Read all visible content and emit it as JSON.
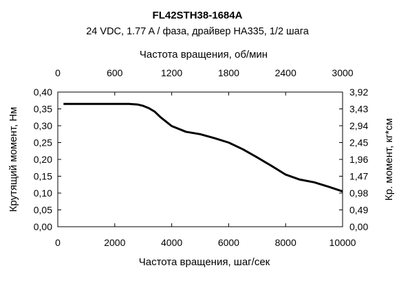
{
  "chart_data": {
    "type": "line",
    "title": "FL42STH38-1684A",
    "subtitle": "24 VDC, 1.77 A / фаза, драйвер HA335, 1/2 шага",
    "xlabel_bottom": "Частота вращения, шаг/сек",
    "xlabel_top": "Частота вращения, об/мин",
    "ylabel_left": "Крутящий момент, Нм",
    "ylabel_right": "Кр. момент, кг*см",
    "xlim": [
      0,
      10000
    ],
    "ylim": [
      0,
      0.4
    ],
    "grid": false,
    "legend": false,
    "x_ticks_bottom": [
      {
        "v": 0,
        "label": "0"
      },
      {
        "v": 2000,
        "label": "2000"
      },
      {
        "v": 4000,
        "label": "4000"
      },
      {
        "v": 6000,
        "label": "6000"
      },
      {
        "v": 8000,
        "label": "8000"
      },
      {
        "v": 10000,
        "label": "10000"
      }
    ],
    "x_ticks_top": [
      {
        "v": 0,
        "label": "0"
      },
      {
        "v": 2000,
        "label": "600"
      },
      {
        "v": 4000,
        "label": "1200"
      },
      {
        "v": 6000,
        "label": "1800"
      },
      {
        "v": 8000,
        "label": "2400"
      },
      {
        "v": 10000,
        "label": "3000"
      }
    ],
    "y_ticks_left": [
      {
        "v": 0.0,
        "label": "0,00"
      },
      {
        "v": 0.05,
        "label": "0,05"
      },
      {
        "v": 0.1,
        "label": "0,10"
      },
      {
        "v": 0.15,
        "label": "0,15"
      },
      {
        "v": 0.2,
        "label": "0,20"
      },
      {
        "v": 0.25,
        "label": "0,25"
      },
      {
        "v": 0.3,
        "label": "0,30"
      },
      {
        "v": 0.35,
        "label": "0,35"
      },
      {
        "v": 0.4,
        "label": "0,40"
      }
    ],
    "y_ticks_right": [
      {
        "v": 0.0,
        "label": "0,00"
      },
      {
        "v": 0.05,
        "label": "0,49"
      },
      {
        "v": 0.1,
        "label": "0,98"
      },
      {
        "v": 0.15,
        "label": "1,47"
      },
      {
        "v": 0.2,
        "label": "1,96"
      },
      {
        "v": 0.25,
        "label": "2,45"
      },
      {
        "v": 0.3,
        "label": "2,94"
      },
      {
        "v": 0.35,
        "label": "3,43"
      },
      {
        "v": 0.4,
        "label": "3,92"
      }
    ],
    "series": [
      {
        "color": "#000000",
        "x": [
          200,
          1000,
          2000,
          2500,
          2800,
          3000,
          3200,
          3400,
          3600,
          4000,
          4500,
          5000,
          5500,
          6000,
          6500,
          7000,
          7500,
          8000,
          8500,
          9000,
          9500,
          10000
        ],
        "y": [
          0.365,
          0.365,
          0.365,
          0.365,
          0.363,
          0.359,
          0.352,
          0.342,
          0.326,
          0.299,
          0.282,
          0.275,
          0.263,
          0.25,
          0.23,
          0.206,
          0.181,
          0.155,
          0.14,
          0.132,
          0.119,
          0.105
        ]
      }
    ]
  }
}
